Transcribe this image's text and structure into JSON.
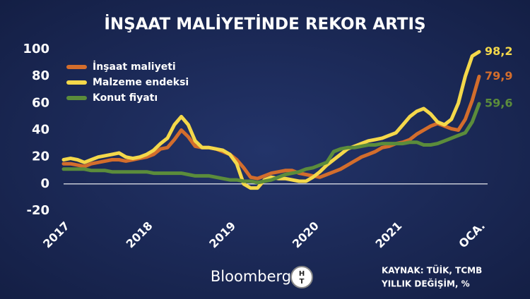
{
  "chart_data": {
    "type": "line",
    "title": "İNŞAAT MALİYETİNDE REKOR ARTIŞ",
    "categories": [
      "2017",
      null,
      null,
      null,
      null,
      null,
      null,
      null,
      null,
      null,
      null,
      null,
      "2018",
      null,
      null,
      null,
      null,
      null,
      null,
      null,
      null,
      null,
      null,
      null,
      "2019",
      null,
      null,
      null,
      null,
      null,
      null,
      null,
      null,
      null,
      null,
      null,
      "2020",
      null,
      null,
      null,
      null,
      null,
      null,
      null,
      null,
      null,
      null,
      null,
      "2021",
      null,
      null,
      null,
      null,
      null,
      null,
      null,
      null,
      null,
      null,
      null,
      "OCA."
    ],
    "series": [
      {
        "name": "İnşaat maliyeti",
        "color": "#d36d2c",
        "values": [
          15,
          15,
          14,
          13,
          15,
          16,
          17,
          18,
          18,
          17,
          18,
          19,
          20,
          22,
          26,
          27,
          33,
          40,
          35,
          28,
          27,
          27,
          26,
          24,
          22,
          18,
          12,
          5,
          4,
          6,
          8,
          9,
          10,
          10,
          8,
          7,
          6,
          5,
          7,
          9,
          11,
          14,
          17,
          20,
          22,
          24,
          27,
          28,
          30,
          31,
          33,
          37,
          40,
          43,
          45,
          43,
          41,
          40,
          48,
          62,
          79.9
        ],
        "value_labels": [
          null,
          null,
          null,
          null,
          null,
          null,
          null,
          null,
          null,
          null,
          null,
          null,
          null,
          null,
          null,
          null,
          null,
          null,
          null,
          null,
          null,
          null,
          null,
          null,
          null,
          null,
          null,
          null,
          null,
          null,
          null,
          null,
          null,
          null,
          null,
          null,
          null,
          null,
          null,
          null,
          null,
          null,
          null,
          null,
          null,
          null,
          null,
          null,
          null,
          null,
          null,
          null,
          null,
          null,
          null,
          null,
          null,
          null,
          null,
          null,
          "79,9"
        ]
      },
      {
        "name": "Malzeme endeksi",
        "color": "#f4d84a",
        "values": [
          18,
          19,
          18,
          16,
          18,
          20,
          21,
          22,
          23,
          20,
          19,
          20,
          22,
          25,
          30,
          34,
          44,
          50,
          44,
          32,
          27,
          27,
          26,
          25,
          22,
          15,
          0,
          -3,
          -3,
          3,
          5,
          4,
          4,
          3,
          2,
          2,
          5,
          9,
          14,
          18,
          22,
          26,
          28,
          30,
          32,
          33,
          34,
          36,
          38,
          44,
          50,
          54,
          56,
          52,
          46,
          44,
          48,
          60,
          80,
          95,
          98.2
        ],
        "value_labels": [
          null,
          null,
          null,
          null,
          null,
          null,
          null,
          null,
          null,
          null,
          null,
          null,
          null,
          null,
          null,
          null,
          null,
          null,
          null,
          null,
          null,
          null,
          null,
          null,
          null,
          null,
          null,
          null,
          null,
          null,
          null,
          null,
          null,
          null,
          null,
          null,
          null,
          null,
          null,
          null,
          null,
          null,
          null,
          null,
          null,
          null,
          null,
          null,
          null,
          null,
          null,
          null,
          null,
          null,
          null,
          null,
          null,
          null,
          null,
          null,
          "98,2"
        ]
      },
      {
        "name": "Konut fiyatı",
        "color": "#5b8c3b",
        "values": [
          11,
          11,
          11,
          11,
          10,
          10,
          10,
          9,
          9,
          9,
          9,
          9,
          9,
          8,
          8,
          8,
          8,
          8,
          7,
          6,
          6,
          6,
          5,
          4,
          3,
          3,
          2,
          2,
          1,
          2,
          3,
          5,
          7,
          8,
          9,
          11,
          12,
          14,
          16,
          24,
          26,
          27,
          27,
          28,
          29,
          29,
          30,
          30,
          30,
          30,
          31,
          31,
          29,
          29,
          30,
          32,
          34,
          36,
          38,
          46,
          59.6
        ],
        "value_labels": [
          null,
          null,
          null,
          null,
          null,
          null,
          null,
          null,
          null,
          null,
          null,
          null,
          null,
          null,
          null,
          null,
          null,
          null,
          null,
          null,
          null,
          null,
          null,
          null,
          null,
          null,
          null,
          null,
          null,
          null,
          null,
          null,
          null,
          null,
          null,
          null,
          null,
          null,
          null,
          null,
          null,
          null,
          null,
          null,
          null,
          null,
          null,
          null,
          null,
          null,
          null,
          null,
          null,
          null,
          null,
          null,
          null,
          null,
          null,
          null,
          "59,6"
        ]
      }
    ],
    "ylim": [
      -20,
      100
    ],
    "yticks": [
      -20,
      0,
      20,
      40,
      60,
      80,
      100
    ],
    "legend": "upper left",
    "brand": "Bloomberg",
    "source": "KAYNAK: TÜİK, TCMB",
    "note": "YILLIK DEĞİŞİM, %"
  }
}
